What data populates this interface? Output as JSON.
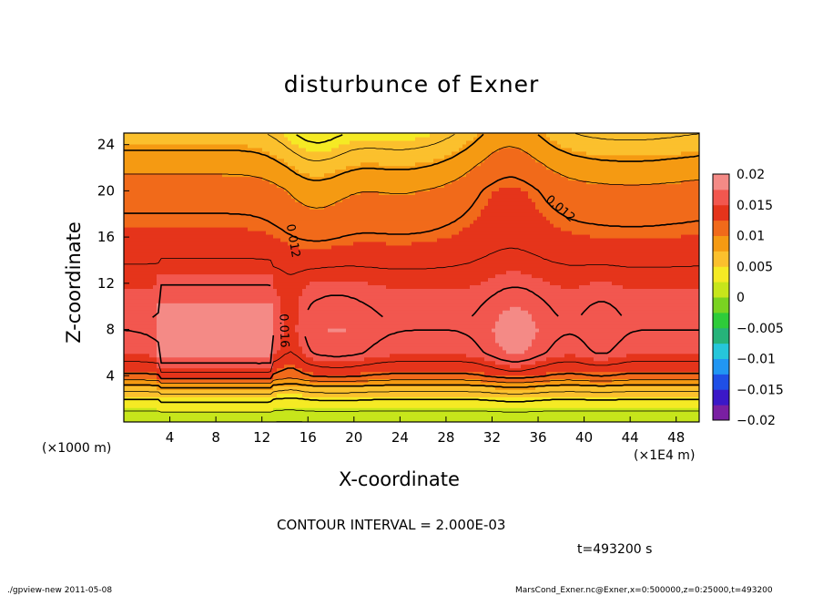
{
  "chart_data": {
    "type": "heatmap",
    "title": "disturbunce of Exner",
    "xlabel": "X-coordinate",
    "ylabel": "Z-coordinate",
    "x_unit": "(×1E4 m)",
    "y_unit": "(×1000 m)",
    "xlim": [
      0,
      50
    ],
    "ylim": [
      0,
      25
    ],
    "x_ticks": [
      4,
      8,
      12,
      16,
      20,
      24,
      28,
      32,
      36,
      40,
      44,
      48
    ],
    "y_ticks": [
      4,
      8,
      12,
      16,
      20,
      24
    ],
    "colorbar": {
      "levels": [
        0.02,
        0.015,
        0.01,
        0.005,
        0,
        -0.005,
        -0.01,
        -0.015,
        -0.02
      ],
      "labels": [
        "0.02",
        "0.015",
        "0.01",
        "0.005",
        "0",
        "−0.005",
        "−0.01",
        "−0.015",
        "−0.02"
      ]
    },
    "contour_labels": [
      "0.012",
      "0.012",
      "0.016"
    ],
    "contour_interval_text": "CONTOUR INTERVAL = 2.000E-03",
    "time_text": "t=493200 s",
    "field_profile_z": [
      [
        0,
        0.0
      ],
      [
        1,
        0.002
      ],
      [
        2,
        0.004
      ],
      [
        3,
        0.007
      ],
      [
        4,
        0.0115
      ],
      [
        5,
        0.0135
      ],
      [
        6,
        0.0152
      ],
      [
        8,
        0.016
      ],
      [
        10,
        0.0155
      ],
      [
        12,
        0.0148
      ],
      [
        14,
        0.0138
      ],
      [
        16,
        0.0128
      ],
      [
        18,
        0.012
      ],
      [
        20,
        0.0112
      ],
      [
        22,
        0.0095
      ],
      [
        24,
        0.0075
      ],
      [
        25,
        0.0065
      ]
    ],
    "max_region_x": [
      [
        3,
        12.5
      ],
      [
        31.5,
        36
      ],
      [
        16,
        20
      ]
    ]
  },
  "footer": {
    "left": "./gpview-new   2011-05-08",
    "right": "MarsCond_Exner.nc@Exner,x=0:500000,z=0:25000,t=493200"
  }
}
